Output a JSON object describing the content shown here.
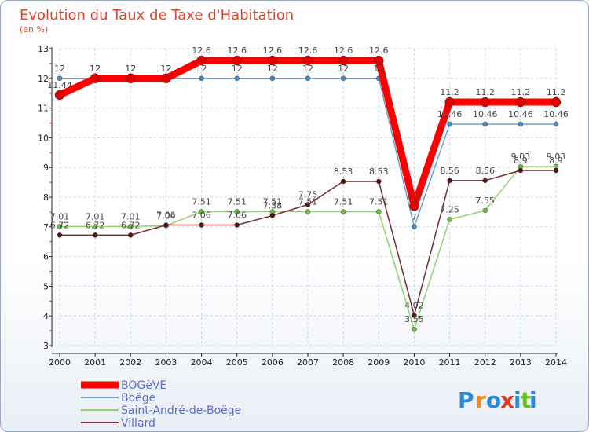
{
  "chart_data": {
    "type": "line",
    "title": "Evolution du Taux de Taxe d'Habitation",
    "ylabel": "(en %)",
    "xlabel": "",
    "x": [
      "2000",
      "2001",
      "2002",
      "2003",
      "2004",
      "2005",
      "2006",
      "2007",
      "2008",
      "2009",
      "2010",
      "2011",
      "2012",
      "2013",
      "2014"
    ],
    "yticks": [
      "3",
      "4",
      "5",
      "6",
      "7",
      "8",
      "9",
      "10",
      "11",
      "12",
      "13"
    ],
    "ylim": [
      3,
      13
    ],
    "grid": true,
    "series": [
      {
        "name": "Saint-André-de-Boëge",
        "color": "#8fd46a",
        "marker": "#6cc040",
        "width": 1.5,
        "values": [
          7.01,
          7.01,
          7.01,
          7.04,
          7.51,
          7.51,
          7.51,
          7.51,
          7.51,
          7.51,
          3.55,
          7.25,
          7.55,
          9.03,
          9.03
        ],
        "labels": [
          "7.01",
          "7.01",
          "7.01",
          "7.04",
          "7.51",
          "7.51",
          "7.51",
          "7.51",
          "7.51",
          "7.51",
          "3.55",
          "7.25",
          "7.55",
          "9.03",
          "9.03"
        ]
      },
      {
        "name": "Villard",
        "color": "#7a2a30",
        "marker": "#5a1518",
        "width": 1.5,
        "values": [
          6.72,
          6.72,
          6.72,
          7.06,
          7.06,
          7.06,
          7.38,
          7.75,
          8.53,
          8.53,
          4.02,
          8.56,
          8.56,
          8.9,
          8.9
        ],
        "labels": [
          "6.72",
          "6.72",
          "6.72",
          "7.06",
          "7.06",
          "7.06",
          "7.38",
          "7.75",
          "8.53",
          "8.53",
          "4.02",
          "8.56",
          "8.56",
          "8.9",
          "8.9"
        ]
      },
      {
        "name": "Boëge",
        "color": "#6fa0d0",
        "marker": "#4a88c8",
        "width": 1.5,
        "values": [
          12,
          12,
          12,
          12,
          12,
          12,
          12,
          12,
          12,
          12,
          7,
          10.46,
          10.46,
          10.46,
          10.46
        ],
        "labels": [
          "12",
          "12",
          "12",
          "12",
          "12",
          "12",
          "12",
          "12",
          "12",
          "12",
          "7",
          "10.46",
          "10.46",
          "10.46",
          "10.46"
        ]
      },
      {
        "name": "BOGèVE",
        "color": "#ff0000",
        "marker": "#e00000",
        "width": 9,
        "values": [
          11.44,
          12,
          12,
          12,
          12.6,
          12.6,
          12.6,
          12.6,
          12.6,
          12.6,
          7.7,
          11.2,
          11.2,
          11.2,
          11.2
        ],
        "labels": [
          "11.44",
          "12",
          "12",
          "12",
          "12.6",
          "12.6",
          "12.6",
          "12.6",
          "12.6",
          "12.6",
          "7.7",
          "11.2",
          "11.2",
          "11.2",
          "11.2"
        ]
      }
    ],
    "legend": [
      "BOGèVE",
      "Boëge",
      "Saint-André-de-Boëge",
      "Villard"
    ],
    "legend_position": "bottom-left"
  },
  "brand": {
    "letters": [
      "P",
      "r",
      "o",
      "x",
      "i",
      "t",
      "i"
    ],
    "colors": [
      "#2a8ad8",
      "#f08a1e",
      "#2a8ad8",
      "#e03a2a",
      "#2a8ad8",
      "#6cbd2c",
      "#2a8ad8"
    ]
  }
}
